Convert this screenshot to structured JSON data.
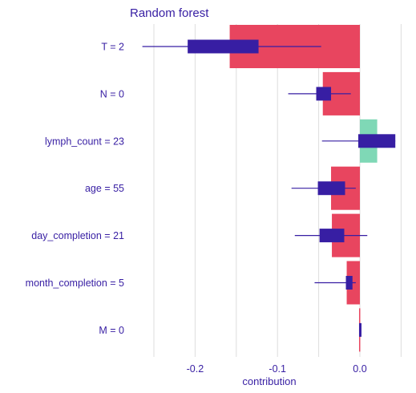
{
  "chart_data": {
    "type": "bar",
    "title": "Random forest",
    "xlabel": "contribution",
    "ylabel": "",
    "xlim": [
      -0.26,
      0.055
    ],
    "xticks": [
      -0.2,
      -0.1,
      0.0
    ],
    "xtick_labels": [
      "-0.2",
      "-0.1",
      "0.0"
    ],
    "grid": "vertical",
    "legend": "none",
    "categories": [
      "T = 2",
      "N = 0",
      "lymph_count = 23",
      "age = 55",
      "day_completion = 21",
      "month_completion = 5",
      "M = 0"
    ],
    "values": [
      -0.158,
      -0.045,
      0.021,
      -0.035,
      -0.034,
      -0.016,
      -0.001
    ],
    "boxplots": [
      {
        "whisker_low": -0.264,
        "q1": -0.209,
        "q3": -0.123,
        "whisker_high": -0.047
      },
      {
        "whisker_low": -0.087,
        "q1": -0.053,
        "q3": -0.035,
        "whisker_high": -0.011
      },
      {
        "whisker_low": -0.046,
        "q1": -0.002,
        "q3": 0.043,
        "whisker_high": 0.043
      },
      {
        "whisker_low": -0.083,
        "q1": -0.051,
        "q3": -0.018,
        "whisker_high": -0.005
      },
      {
        "whisker_low": -0.079,
        "q1": -0.049,
        "q3": -0.019,
        "whisker_high": 0.009
      },
      {
        "whisker_low": -0.055,
        "q1": -0.017,
        "q3": -0.009,
        "whisker_high": -0.005
      },
      {
        "whisker_low": -0.001,
        "q1": -0.001,
        "q3": 0.001,
        "whisker_high": 0.001
      }
    ],
    "colors": {
      "negative": "#e8455f",
      "positive": "#7fd8b6",
      "boxplot": "#371ea3",
      "text": "#371ea3",
      "grid": "#dddddd"
    }
  }
}
